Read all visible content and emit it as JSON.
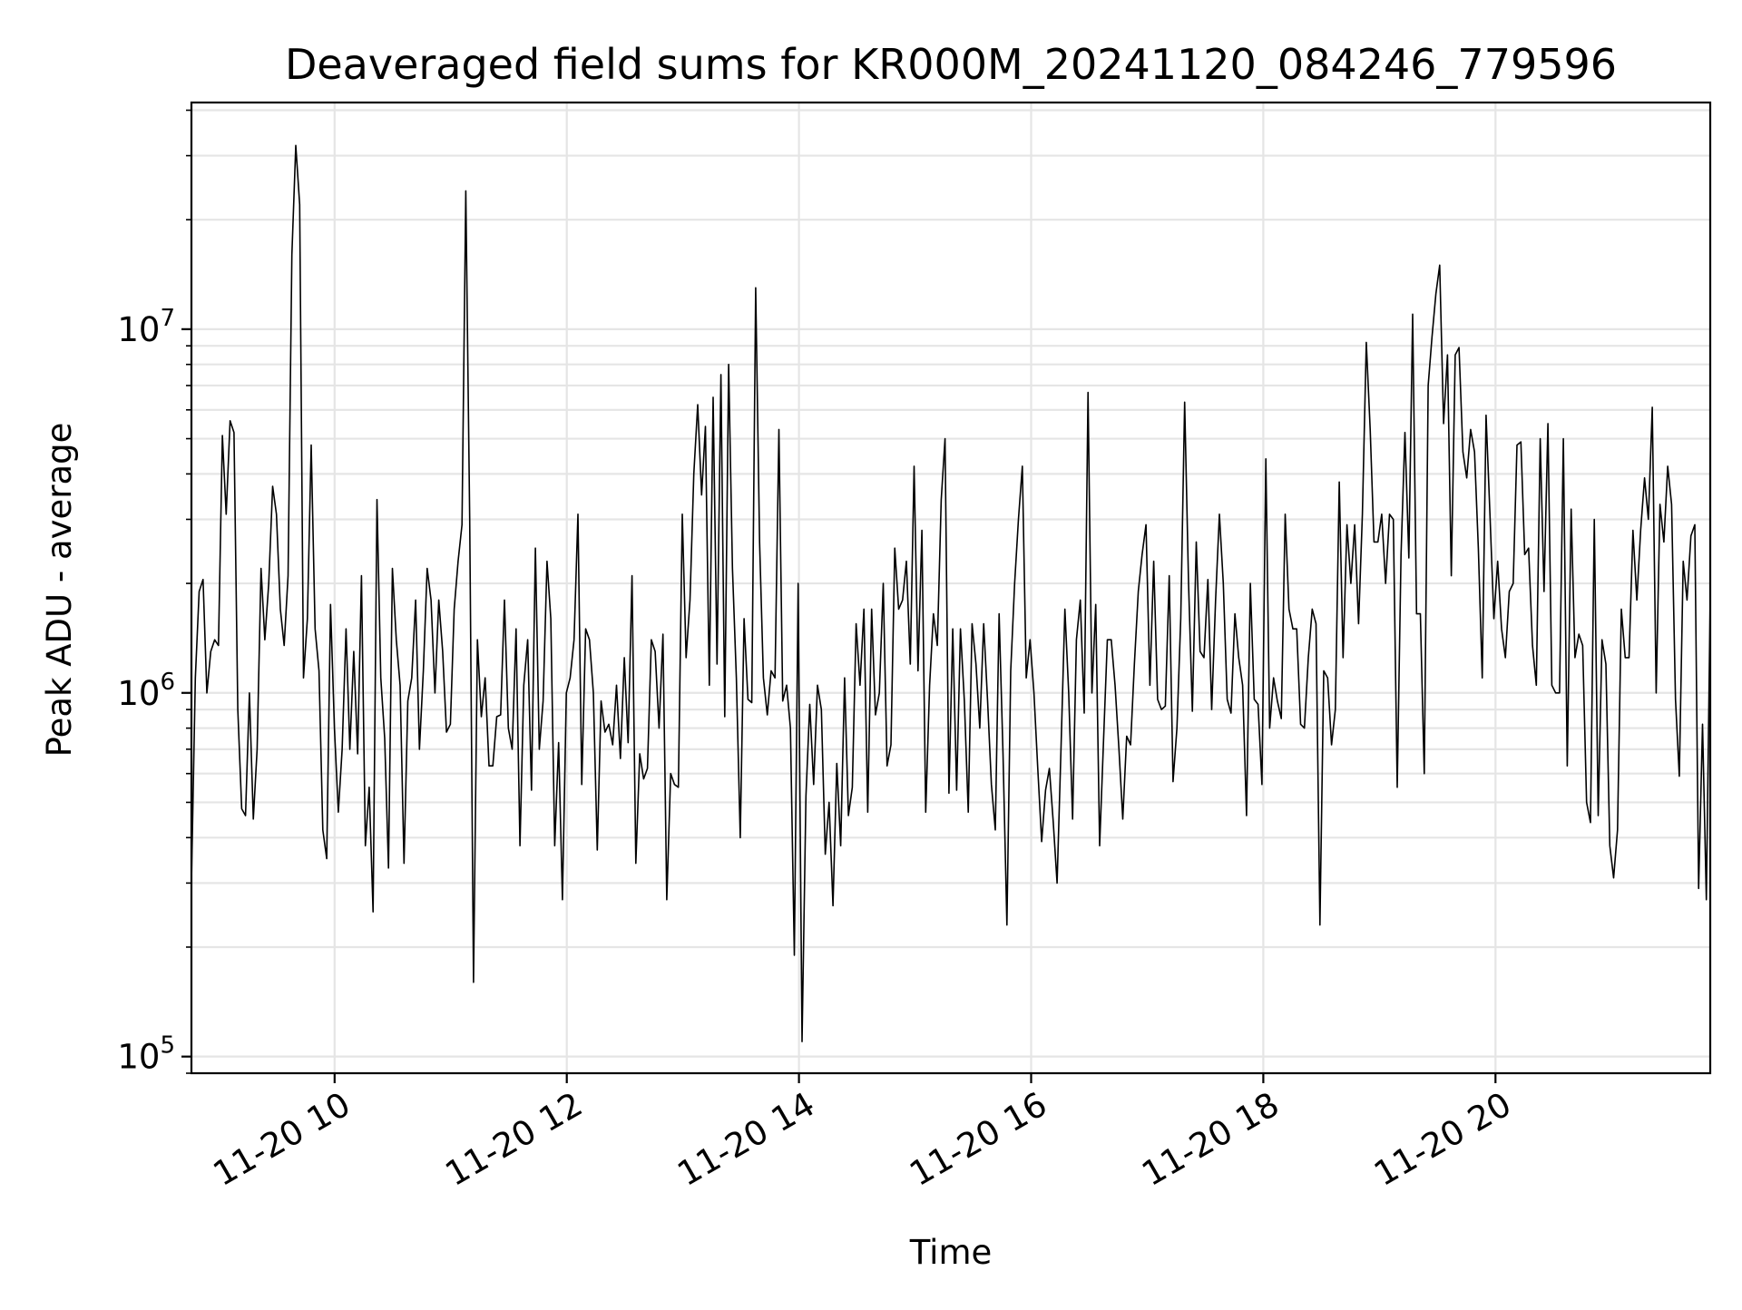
{
  "chart_data": {
    "type": "line",
    "title": "Deaveraged field sums for KR000M_20241120_084246_779596",
    "xlabel": "Time",
    "ylabel": "Peak ADU - average",
    "y_scale": "log",
    "ylim": [
      90000,
      42000000
    ],
    "xlim": [
      "2024-11-20 08:46",
      "2024-11-20 21:51"
    ],
    "grid": true,
    "legend": "none",
    "colors": {
      "line": "#000000",
      "grid": "#e5e5e5",
      "axes": "#000000",
      "background": "#ffffff"
    },
    "x_ticks": [
      {
        "value": "2024-11-20 10:00",
        "label": "11-20 10"
      },
      {
        "value": "2024-11-20 12:00",
        "label": "11-20 12"
      },
      {
        "value": "2024-11-20 14:00",
        "label": "11-20 14"
      },
      {
        "value": "2024-11-20 16:00",
        "label": "11-20 16"
      },
      {
        "value": "2024-11-20 18:00",
        "label": "11-20 18"
      },
      {
        "value": "2024-11-20 20:00",
        "label": "11-20 20"
      }
    ],
    "y_ticks": [
      {
        "value": 100000,
        "base": "10",
        "exp": "5"
      },
      {
        "value": 1000000,
        "base": "10",
        "exp": "6"
      },
      {
        "value": 10000000,
        "base": "10",
        "exp": "7"
      }
    ],
    "series": [
      {
        "time_start": "2024-11-20 08:46",
        "time_end": "2024-11-20 21:51",
        "values": [
          300000,
          1100000,
          1900000,
          2050000,
          1000000,
          1300000,
          1400000,
          1350000,
          5100000,
          3100000,
          5600000,
          5200000,
          900000,
          480000,
          460000,
          1000000,
          450000,
          700000,
          2200000,
          1400000,
          2000000,
          3700000,
          3100000,
          1700000,
          1350000,
          2100000,
          16000000,
          32000000,
          22000000,
          1100000,
          1600000,
          4800000,
          1500000,
          1150000,
          420000,
          350000,
          1750000,
          800000,
          470000,
          700000,
          1500000,
          700000,
          1300000,
          680000,
          2100000,
          380000,
          550000,
          250000,
          3400000,
          1100000,
          750000,
          330000,
          2200000,
          1400000,
          1050000,
          340000,
          950000,
          1100000,
          1800000,
          700000,
          1150000,
          2200000,
          1800000,
          1000000,
          1800000,
          1300000,
          780000,
          820000,
          1700000,
          2300000,
          2900000,
          24000000,
          3000000,
          160000,
          1400000,
          860000,
          1100000,
          630000,
          630000,
          860000,
          870000,
          1800000,
          800000,
          700000,
          1500000,
          380000,
          1050000,
          1400000,
          540000,
          2500000,
          700000,
          950000,
          2300000,
          1600000,
          380000,
          730000,
          270000,
          1000000,
          1100000,
          1400000,
          3100000,
          560000,
          1500000,
          1400000,
          1000000,
          370000,
          950000,
          780000,
          820000,
          720000,
          1050000,
          660000,
          1250000,
          730000,
          2100000,
          340000,
          680000,
          580000,
          620000,
          1400000,
          1300000,
          800000,
          1450000,
          270000,
          600000,
          560000,
          550000,
          3100000,
          1250000,
          1800000,
          4000000,
          6200000,
          3500000,
          5400000,
          1050000,
          6500000,
          1200000,
          7500000,
          860000,
          8000000,
          2200000,
          1100000,
          400000,
          1600000,
          960000,
          940000,
          13000000,
          2600000,
          1100000,
          870000,
          1150000,
          1100000,
          5300000,
          950000,
          1050000,
          800000,
          190000,
          2000000,
          110000,
          520000,
          930000,
          560000,
          1050000,
          900000,
          360000,
          500000,
          260000,
          640000,
          380000,
          1100000,
          460000,
          550000,
          1550000,
          1050000,
          1700000,
          470000,
          1700000,
          870000,
          1000000,
          2000000,
          630000,
          720000,
          2500000,
          1700000,
          1800000,
          2300000,
          1200000,
          4200000,
          1150000,
          2800000,
          470000,
          1050000,
          1650000,
          1350000,
          3400000,
          5000000,
          530000,
          1500000,
          540000,
          1500000,
          950000,
          470000,
          1550000,
          1200000,
          800000,
          1550000,
          950000,
          560000,
          420000,
          1650000,
          680000,
          230000,
          1150000,
          2000000,
          3000000,
          4200000,
          1100000,
          1400000,
          1000000,
          620000,
          390000,
          540000,
          620000,
          440000,
          300000,
          700000,
          1700000,
          1000000,
          450000,
          1400000,
          1800000,
          880000,
          6700000,
          1000000,
          1750000,
          380000,
          740000,
          1400000,
          1400000,
          1050000,
          700000,
          450000,
          760000,
          720000,
          1200000,
          1900000,
          2400000,
          2900000,
          1050000,
          2300000,
          960000,
          900000,
          920000,
          2100000,
          570000,
          800000,
          1600000,
          6300000,
          2000000,
          890000,
          2600000,
          1300000,
          1250000,
          2050000,
          900000,
          1800000,
          3100000,
          2000000,
          960000,
          880000,
          1650000,
          1250000,
          1050000,
          460000,
          2000000,
          960000,
          930000,
          560000,
          4400000,
          800000,
          1100000,
          950000,
          850000,
          3100000,
          1700000,
          1500000,
          1500000,
          820000,
          800000,
          1250000,
          1700000,
          1550000,
          230000,
          1150000,
          1100000,
          720000,
          900000,
          3800000,
          1250000,
          2900000,
          2000000,
          2900000,
          1550000,
          3100000,
          9200000,
          5300000,
          2600000,
          2600000,
          3100000,
          2000000,
          3100000,
          3000000,
          550000,
          2400000,
          5200000,
          2350000,
          11000000,
          1650000,
          1650000,
          600000,
          7000000,
          9500000,
          12500000,
          15000000,
          5500000,
          8500000,
          2100000,
          8500000,
          8900000,
          4600000,
          3900000,
          5300000,
          4600000,
          2500000,
          1100000,
          5800000,
          3100000,
          1600000,
          2300000,
          1500000,
          1250000,
          1900000,
          2000000,
          4800000,
          4900000,
          2400000,
          2500000,
          1350000,
          1050000,
          5000000,
          1900000,
          5500000,
          1050000,
          1000000,
          1000000,
          5000000,
          630000,
          3200000,
          1250000,
          1450000,
          1350000,
          500000,
          440000,
          3000000,
          460000,
          1400000,
          1200000,
          380000,
          310000,
          420000,
          1700000,
          1250000,
          1250000,
          2800000,
          1800000,
          2800000,
          3900000,
          3000000,
          6100000,
          1000000,
          3300000,
          2600000,
          4200000,
          3300000,
          960000,
          590000,
          2300000,
          1800000,
          2700000,
          2900000,
          290000,
          820000,
          270000,
          1850000
        ]
      }
    ]
  }
}
